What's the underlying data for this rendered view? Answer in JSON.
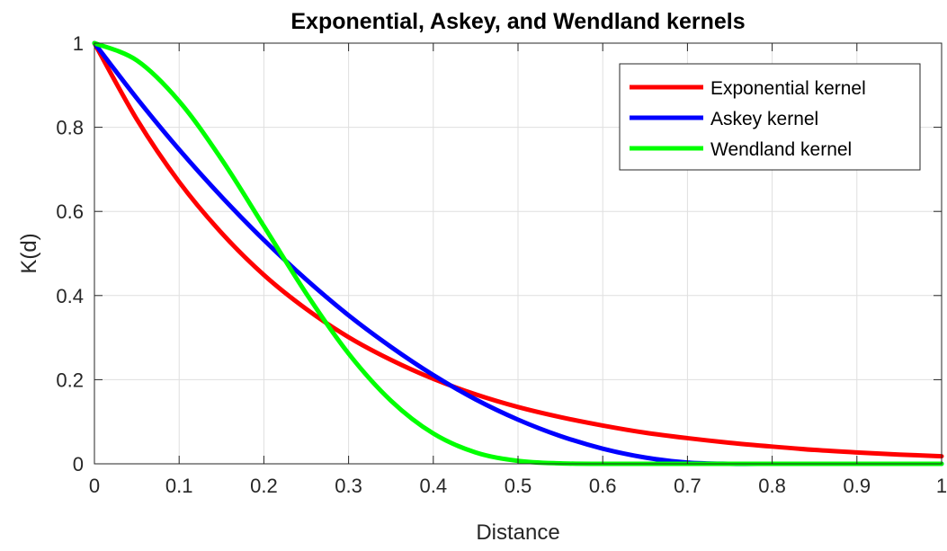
{
  "chart_data": {
    "type": "line",
    "title": "Exponential, Askey, and Wendland kernels",
    "xlabel": "Distance",
    "ylabel": "K(d)",
    "xlim": [
      0,
      1
    ],
    "ylim": [
      0,
      1
    ],
    "xticks": [
      "0",
      "0.1",
      "0.2",
      "0.3",
      "0.4",
      "0.5",
      "0.6",
      "0.7",
      "0.8",
      "0.9",
      "1"
    ],
    "yticks": [
      "0",
      "0.2",
      "0.4",
      "0.6",
      "0.8",
      "1"
    ],
    "grid": true,
    "legend_position": "top-right",
    "x": [
      0,
      0.05,
      0.1,
      0.15,
      0.2,
      0.25,
      0.3,
      0.35,
      0.4,
      0.45,
      0.5,
      0.55,
      0.6,
      0.65,
      0.7,
      0.75,
      0.8,
      0.85,
      0.9,
      0.95,
      1.0
    ],
    "series": [
      {
        "name": "Exponential kernel",
        "color": "#ff0000",
        "values": [
          1.0,
          0.819,
          0.67,
          0.549,
          0.449,
          0.368,
          0.301,
          0.247,
          0.202,
          0.165,
          0.135,
          0.111,
          0.091,
          0.074,
          0.061,
          0.05,
          0.041,
          0.033,
          0.027,
          0.022,
          0.018
        ]
      },
      {
        "name": "Askey kernel",
        "color": "#0000ff",
        "values": [
          1.0,
          0.869,
          0.747,
          0.635,
          0.532,
          0.438,
          0.353,
          0.278,
          0.211,
          0.153,
          0.105,
          0.066,
          0.036,
          0.015,
          0.003,
          0.0,
          0.0,
          0.0,
          0.0,
          0.0,
          0.0
        ]
      },
      {
        "name": "Wendland kernel",
        "color": "#00ff00",
        "values": [
          1.0,
          0.959,
          0.862,
          0.724,
          0.565,
          0.405,
          0.262,
          0.15,
          0.072,
          0.027,
          0.007,
          0.001,
          0.0,
          0.0,
          0.0,
          0.0,
          0.0,
          0.0,
          0.0,
          0.0,
          0.0
        ]
      }
    ]
  }
}
